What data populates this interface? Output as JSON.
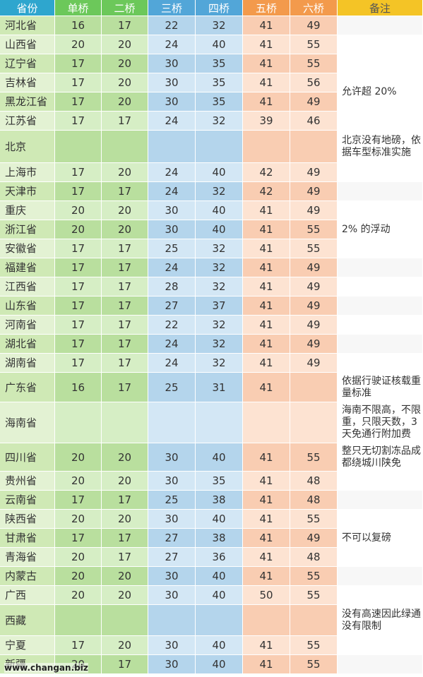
{
  "headers": [
    "省份",
    "单桥",
    "二桥",
    "三桥",
    "四桥",
    "五桥",
    "六桥",
    "备注"
  ],
  "colors": {
    "h0": "#2ea6ce",
    "h12": "#6cc85a",
    "h34": "#52a6d8",
    "h56": "#f39a4c",
    "h7": "#f4c426"
  },
  "rows": [
    {
      "p": "河北省",
      "v": [
        "16",
        "17",
        "22",
        "32",
        "41",
        "49"
      ],
      "h": 27
    },
    {
      "p": "山西省",
      "v": [
        "20",
        "20",
        "24",
        "40",
        "41",
        "55"
      ],
      "h": 27
    },
    {
      "p": "辽宁省",
      "v": [
        "17",
        "20",
        "30",
        "35",
        "41",
        "55"
      ],
      "h": 27
    },
    {
      "p": "吉林省",
      "v": [
        "17",
        "20",
        "30",
        "35",
        "41",
        "56"
      ],
      "h": 27
    },
    {
      "p": "黑龙江省",
      "v": [
        "17",
        "20",
        "30",
        "35",
        "41",
        "49"
      ],
      "h": 27
    },
    {
      "p": "江苏省",
      "v": [
        "17",
        "17",
        "24",
        "32",
        "39",
        "46"
      ],
      "h": 27
    },
    {
      "p": "北京",
      "v": [
        "",
        "",
        "",
        "",
        "",
        ""
      ],
      "h": 46
    },
    {
      "p": "上海市",
      "v": [
        "17",
        "20",
        "24",
        "40",
        "42",
        "49"
      ],
      "h": 27
    },
    {
      "p": "天津市",
      "v": [
        "17",
        "17",
        "24",
        "32",
        "42",
        "49"
      ],
      "h": 27
    },
    {
      "p": "重庆",
      "v": [
        "20",
        "20",
        "30",
        "40",
        "41",
        "49"
      ],
      "h": 27
    },
    {
      "p": "浙江省",
      "v": [
        "20",
        "20",
        "30",
        "40",
        "41",
        "55"
      ],
      "h": 27
    },
    {
      "p": "安徽省",
      "v": [
        "17",
        "17",
        "25",
        "32",
        "41",
        "55"
      ],
      "h": 27
    },
    {
      "p": "福建省",
      "v": [
        "17",
        "17",
        "24",
        "32",
        "41",
        "49"
      ],
      "h": 27
    },
    {
      "p": "江西省",
      "v": [
        "17",
        "17",
        "28",
        "32",
        "41",
        "49"
      ],
      "h": 27
    },
    {
      "p": "山东省",
      "v": [
        "17",
        "17",
        "27",
        "37",
        "41",
        "49"
      ],
      "h": 27
    },
    {
      "p": "河南省",
      "v": [
        "17",
        "17",
        "22",
        "32",
        "41",
        "49"
      ],
      "h": 27
    },
    {
      "p": "湖北省",
      "v": [
        "17",
        "17",
        "24",
        "32",
        "41",
        "49"
      ],
      "h": 27
    },
    {
      "p": "湖南省",
      "v": [
        "17",
        "17",
        "24",
        "32",
        "41",
        "49"
      ],
      "h": 27
    },
    {
      "p": "广东省",
      "v": [
        "16",
        "17",
        "25",
        "31",
        "41",
        ""
      ],
      "h": 42
    },
    {
      "p": "海南省",
      "v": [
        "",
        "",
        "",
        "",
        "",
        ""
      ],
      "h": 58
    },
    {
      "p": "四川省",
      "v": [
        "20",
        "20",
        "30",
        "40",
        "41",
        "55"
      ],
      "h": 40
    },
    {
      "p": "贵州省",
      "v": [
        "20",
        "20",
        "30",
        "35",
        "41",
        "48"
      ],
      "h": 27
    },
    {
      "p": "云南省",
      "v": [
        "17",
        "17",
        "25",
        "38",
        "41",
        "48"
      ],
      "h": 27
    },
    {
      "p": "陕西省",
      "v": [
        "20",
        "20",
        "30",
        "40",
        "41",
        "55"
      ],
      "h": 27
    },
    {
      "p": "甘肃省",
      "v": [
        "17",
        "17",
        "27",
        "38",
        "41",
        "49"
      ],
      "h": 27
    },
    {
      "p": "青海省",
      "v": [
        "20",
        "17",
        "27",
        "36",
        "41",
        "48"
      ],
      "h": 27
    },
    {
      "p": "内蒙古",
      "v": [
        "20",
        "20",
        "30",
        "40",
        "41",
        "55"
      ],
      "h": 27
    },
    {
      "p": "广西",
      "v": [
        "20",
        "20",
        "30",
        "40",
        "50",
        "55"
      ],
      "h": 27
    },
    {
      "p": "西藏",
      "v": [
        "",
        "",
        "",
        "",
        "",
        ""
      ],
      "h": 44
    },
    {
      "p": "宁夏",
      "v": [
        "17",
        "20",
        "30",
        "40",
        "41",
        "55"
      ],
      "h": 27
    },
    {
      "p": "新疆",
      "v": [
        "20",
        "17",
        "30",
        "40",
        "41",
        "55"
      ],
      "h": 27
    }
  ],
  "notes": [
    {
      "row": 2,
      "span": 4,
      "text": "允许超 20%"
    },
    {
      "row": 6,
      "span": 1,
      "text": "北京没有地磅，依据车型标准实施"
    },
    {
      "row": 9,
      "span": 3,
      "text": "2% 的浮动"
    },
    {
      "row": 18,
      "span": 1,
      "text": "依据行驶证核载重量标准"
    },
    {
      "row": 19,
      "span": 1,
      "text": "海南不限高，不限重，只限天数，3天免通行附加费"
    },
    {
      "row": 20,
      "span": 1,
      "text": "整只无切割冻品成都绕城川陕免"
    },
    {
      "row": 24,
      "span": 1,
      "text": "不可以复磅"
    },
    {
      "row": 28,
      "span": 1,
      "text": "没有高速因此绿通没有限制"
    }
  ],
  "watermark": "www.changan.biz"
}
